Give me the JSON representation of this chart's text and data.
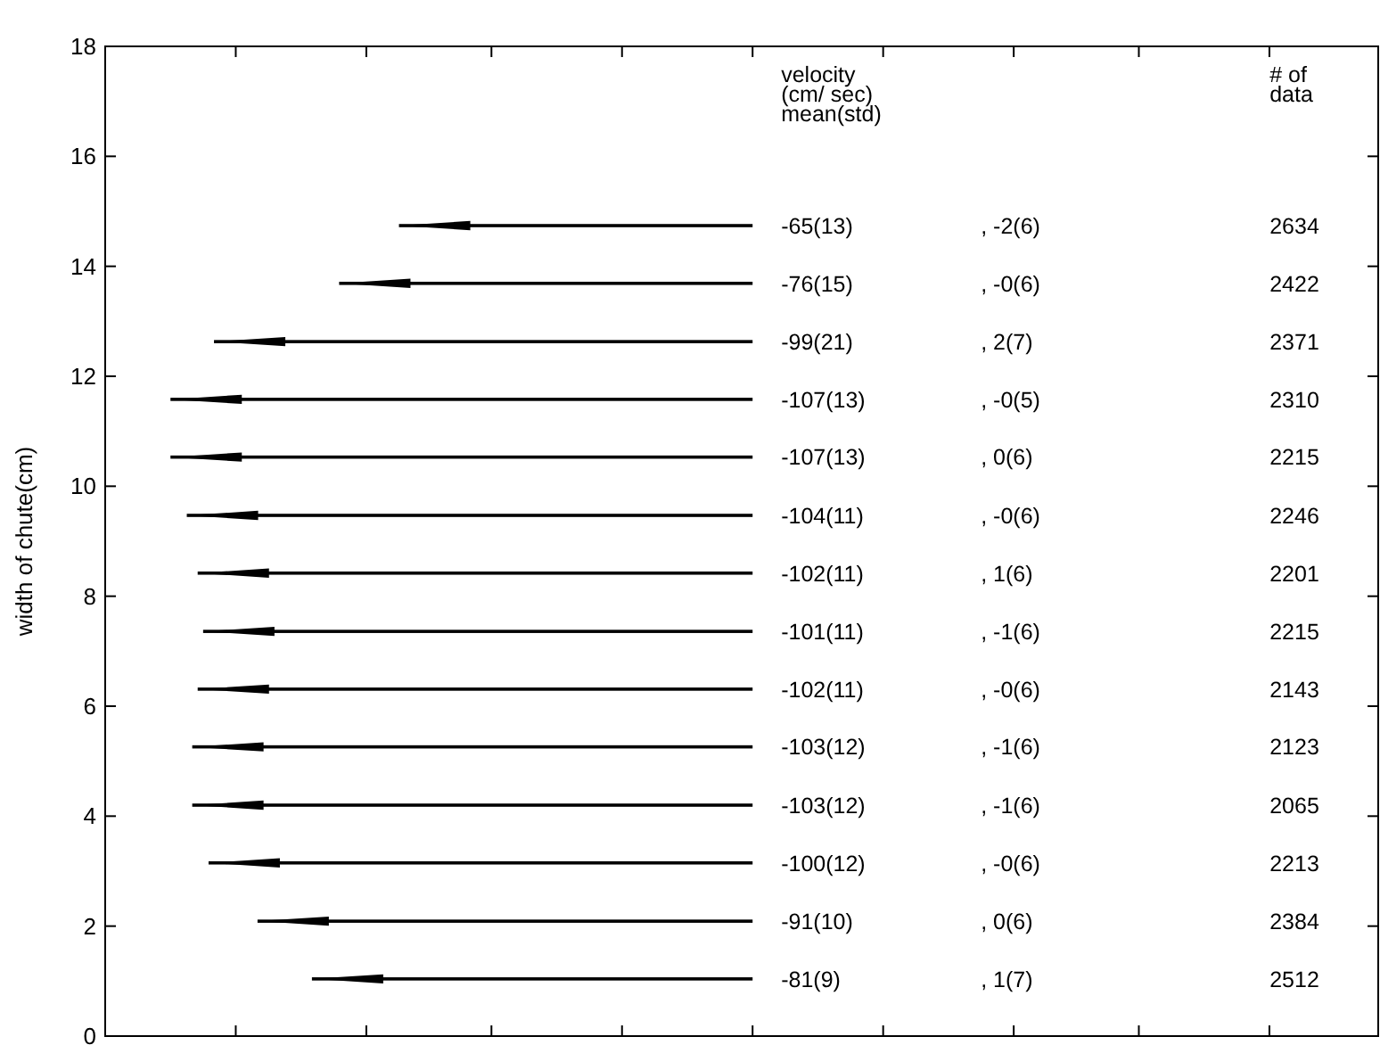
{
  "chart_data": {
    "type": "bar",
    "orientation": "horizontal",
    "ylabel": "width of chute(cm)",
    "x": [
      1.04,
      2.09,
      3.15,
      4.2,
      5.26,
      6.31,
      7.36,
      8.42,
      9.47,
      10.53,
      11.58,
      12.63,
      13.69,
      14.74
    ],
    "values": [
      -81,
      -91,
      -100,
      -103,
      -103,
      -102,
      -101,
      -102,
      -104,
      -107,
      -107,
      -99,
      -76,
      -65
    ],
    "value_labels": [
      "-81(9)",
      "-91(10)",
      "-100(12)",
      "-103(12)",
      "-103(12)",
      "-102(11)",
      "-101(11)",
      "-102(11)",
      "-104(11)",
      "-107(13)",
      "-107(13)",
      "-99(21)",
      "-76(15)",
      "-65(13)"
    ],
    "color": "#000000",
    "xlim": [
      -119,
      115
    ],
    "xticks": [
      {
        "value": -95,
        "label": null
      },
      {
        "value": -71,
        "label": null
      },
      {
        "value": -48,
        "label": null
      },
      {
        "value": -24,
        "label": null
      },
      {
        "value": 0,
        "label": null
      },
      {
        "value": 24,
        "label": null
      },
      {
        "value": 48,
        "label": null
      },
      {
        "value": 71,
        "label": null
      },
      {
        "value": 95,
        "label": null
      }
    ],
    "ylim": [
      0,
      18
    ],
    "yticks": [
      0,
      2,
      4,
      6,
      8,
      10,
      12,
      14,
      16,
      18
    ],
    "tick_labels": "y",
    "grid": false,
    "annotations": [
      "velocity\n(cm/ sec)\nmean(std)",
      "# of\ndata",
      ", 1(7)",
      ", 0(6)",
      ", -0(6)",
      ", -1(6)",
      ", -1(6)",
      ", -0(6)",
      ", -1(6)",
      ", 1(6)",
      ", -0(6)",
      ", 0(6)",
      ", -0(5)",
      ", 2(7)",
      ", -0(6)",
      ", -2(6)",
      "2512",
      "2384",
      "2213",
      "2065",
      "2123",
      "2143",
      "2215",
      "2201",
      "2246",
      "2215",
      "2310",
      "2371",
      "2422",
      "2634"
    ]
  }
}
